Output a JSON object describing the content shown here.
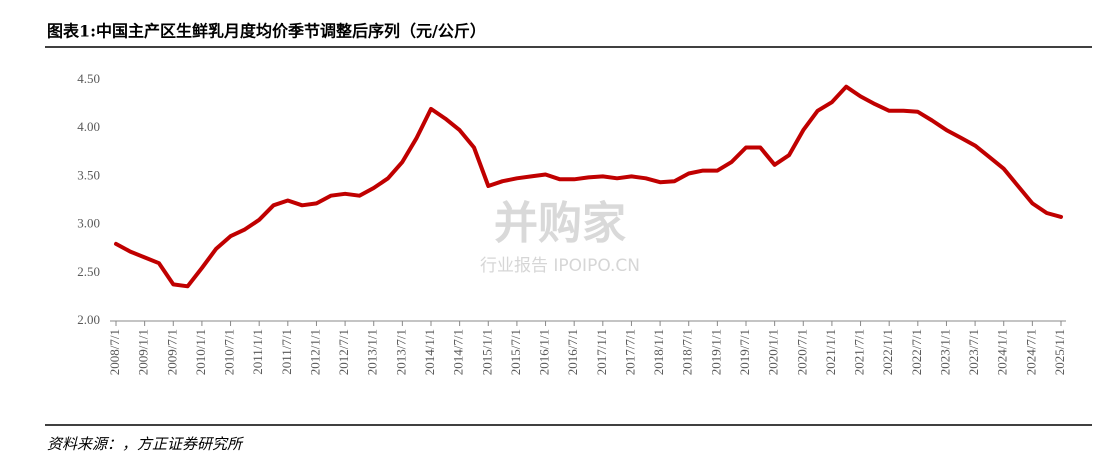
{
  "chart_data": {
    "type": "line",
    "title": "图表1:中国主产区生鲜乳月度均价季节调整后序列（元/公斤）",
    "source": "资料来源：，方正证券研究所",
    "watermark": [
      "并购家",
      "行业报告 IPOIPO.CN"
    ],
    "color": "#c00000",
    "categories": [
      "2008/7/1",
      null,
      "2009/1/1",
      null,
      "2009/7/1",
      null,
      "2010/1/1",
      null,
      "2010/7/1",
      null,
      "2011/1/1",
      null,
      "2011/7/1",
      null,
      "2012/1/1",
      null,
      "2012/7/1",
      null,
      "2013/1/1",
      null,
      "2013/7/1",
      null,
      "2014/1/1",
      null,
      "2014/7/1",
      null,
      "2015/1/1",
      null,
      "2015/7/1",
      null,
      "2016/1/1",
      null,
      "2016/7/1",
      null,
      "2017/1/1",
      null,
      "2017/7/1",
      null,
      "2018/1/1",
      null,
      "2018/7/1",
      null,
      "2019/1/1",
      null,
      "2019/7/1",
      null,
      "2020/1/1",
      null,
      "2020/7/1",
      null,
      "2021/1/1",
      null,
      "2021/7/1",
      null,
      "2022/1/1",
      null,
      "2022/7/1",
      null,
      "2023/1/1",
      null,
      "2023/7/1",
      null,
      "2024/1/1",
      null,
      "2024/7/1",
      null,
      "2025/1/1"
    ],
    "values": [
      2.8,
      2.72,
      2.66,
      2.6,
      2.38,
      2.36,
      2.55,
      2.75,
      2.88,
      2.95,
      3.05,
      3.2,
      3.25,
      3.2,
      3.22,
      3.3,
      3.32,
      3.3,
      3.38,
      3.48,
      3.65,
      3.9,
      4.2,
      4.1,
      3.98,
      3.8,
      3.4,
      3.45,
      3.48,
      3.5,
      3.52,
      3.47,
      3.47,
      3.49,
      3.5,
      3.48,
      3.5,
      3.48,
      3.44,
      3.45,
      3.53,
      3.56,
      3.56,
      3.65,
      3.8,
      3.8,
      3.62,
      3.72,
      3.98,
      4.18,
      4.27,
      4.43,
      4.33,
      4.25,
      4.18,
      4.18,
      4.17,
      4.08,
      3.98,
      3.9,
      3.82,
      3.7,
      3.58,
      3.4,
      3.22,
      3.12,
      3.08
    ],
    "ylim": [
      2.0,
      4.5
    ],
    "yticks": [
      {
        "value": 2.0,
        "label": "2.00"
      },
      {
        "value": 2.5,
        "label": "2.50"
      },
      {
        "value": 3.0,
        "label": "3.00"
      },
      {
        "value": 3.5,
        "label": "3.50"
      },
      {
        "value": 4.0,
        "label": "4.00"
      },
      {
        "value": 4.5,
        "label": "4.50"
      }
    ],
    "grid": false
  }
}
